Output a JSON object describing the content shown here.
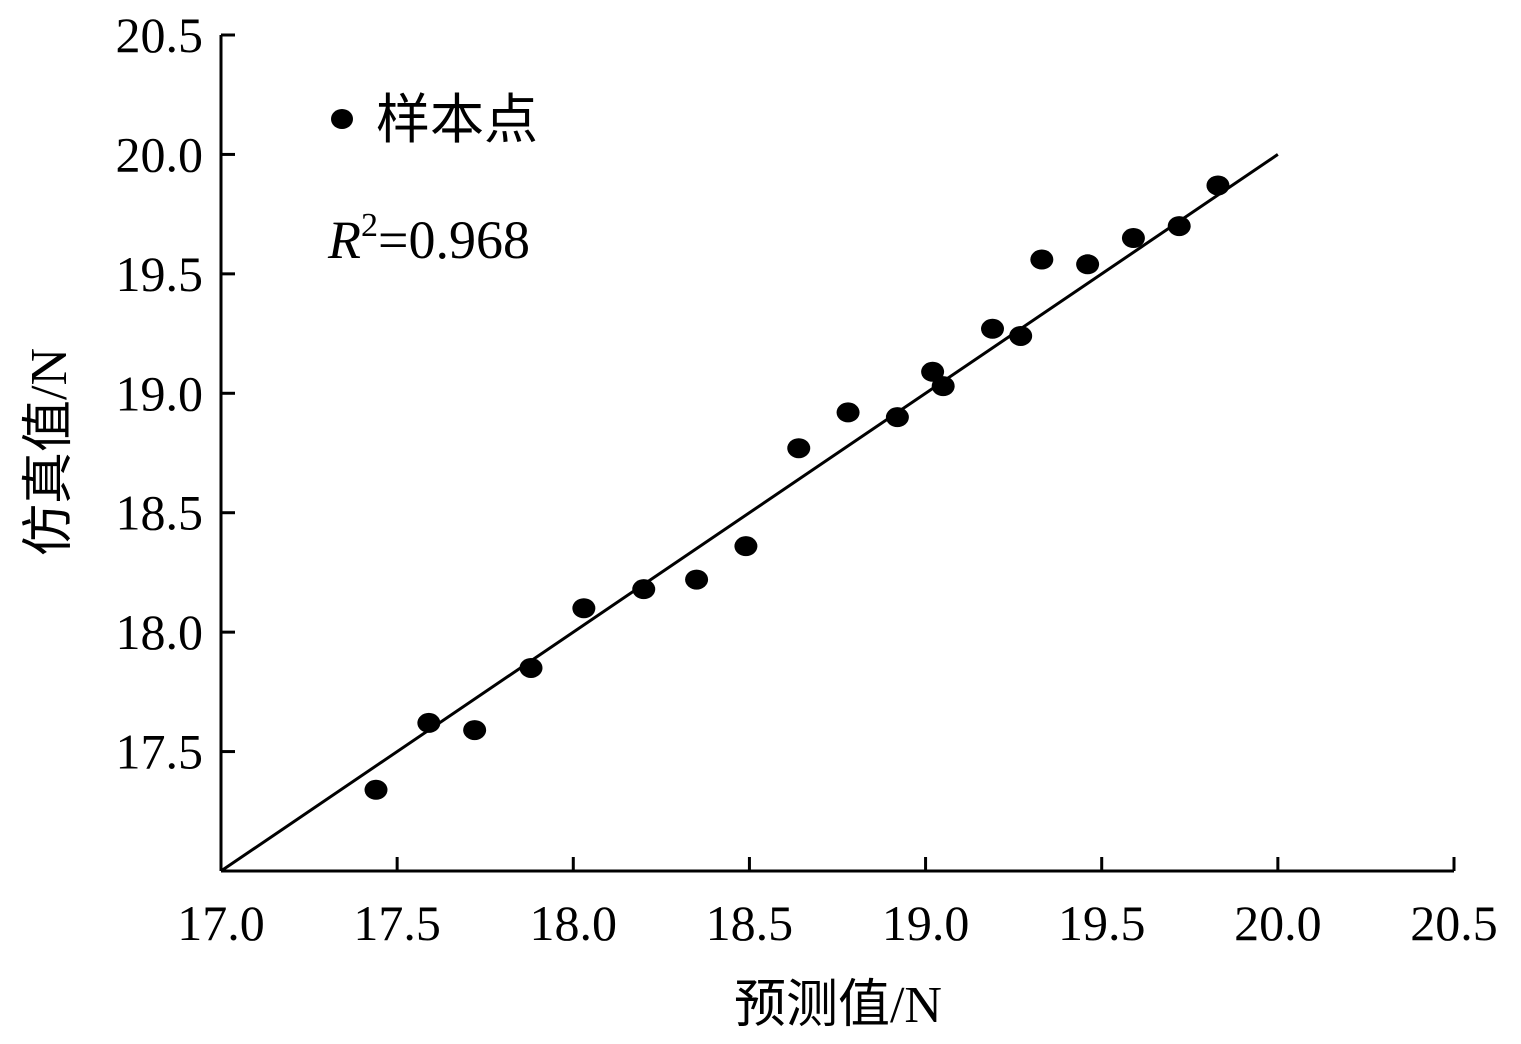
{
  "chart_data": {
    "type": "scatter",
    "xlabel": "预测值/N",
    "ylabel": "仿真值/N",
    "xlim": [
      17.0,
      20.5
    ],
    "ylim": [
      17.0,
      20.5
    ],
    "x_ticks": [
      "17.0",
      "17.5",
      "18.0",
      "18.5",
      "19.0",
      "19.5",
      "20.0",
      "20.5"
    ],
    "y_ticks": [
      "17.5",
      "18.0",
      "18.5",
      "19.0",
      "19.5",
      "20.0",
      "20.5"
    ],
    "grid": false,
    "legend": {
      "label": "样本点",
      "position": "top-left"
    },
    "annotation": {
      "symbol": "R",
      "exponent": "2",
      "value": "=0.968"
    },
    "fit_line": {
      "x": [
        17.0,
        20.0
      ],
      "y": [
        17.0,
        20.0
      ]
    },
    "series": [
      {
        "points": [
          {
            "x": 17.44,
            "y": 17.34
          },
          {
            "x": 17.59,
            "y": 17.62
          },
          {
            "x": 17.72,
            "y": 17.59
          },
          {
            "x": 17.88,
            "y": 17.85
          },
          {
            "x": 18.03,
            "y": 18.1
          },
          {
            "x": 18.2,
            "y": 18.18
          },
          {
            "x": 18.35,
            "y": 18.22
          },
          {
            "x": 18.49,
            "y": 18.36
          },
          {
            "x": 18.64,
            "y": 18.77
          },
          {
            "x": 18.78,
            "y": 18.92
          },
          {
            "x": 18.92,
            "y": 18.9
          },
          {
            "x": 19.02,
            "y": 19.09
          },
          {
            "x": 19.05,
            "y": 19.03
          },
          {
            "x": 19.19,
            "y": 19.27
          },
          {
            "x": 19.27,
            "y": 19.24
          },
          {
            "x": 19.33,
            "y": 19.56
          },
          {
            "x": 19.46,
            "y": 19.54
          },
          {
            "x": 19.59,
            "y": 19.65
          },
          {
            "x": 19.72,
            "y": 19.7
          },
          {
            "x": 19.83,
            "y": 19.87
          }
        ]
      }
    ]
  }
}
